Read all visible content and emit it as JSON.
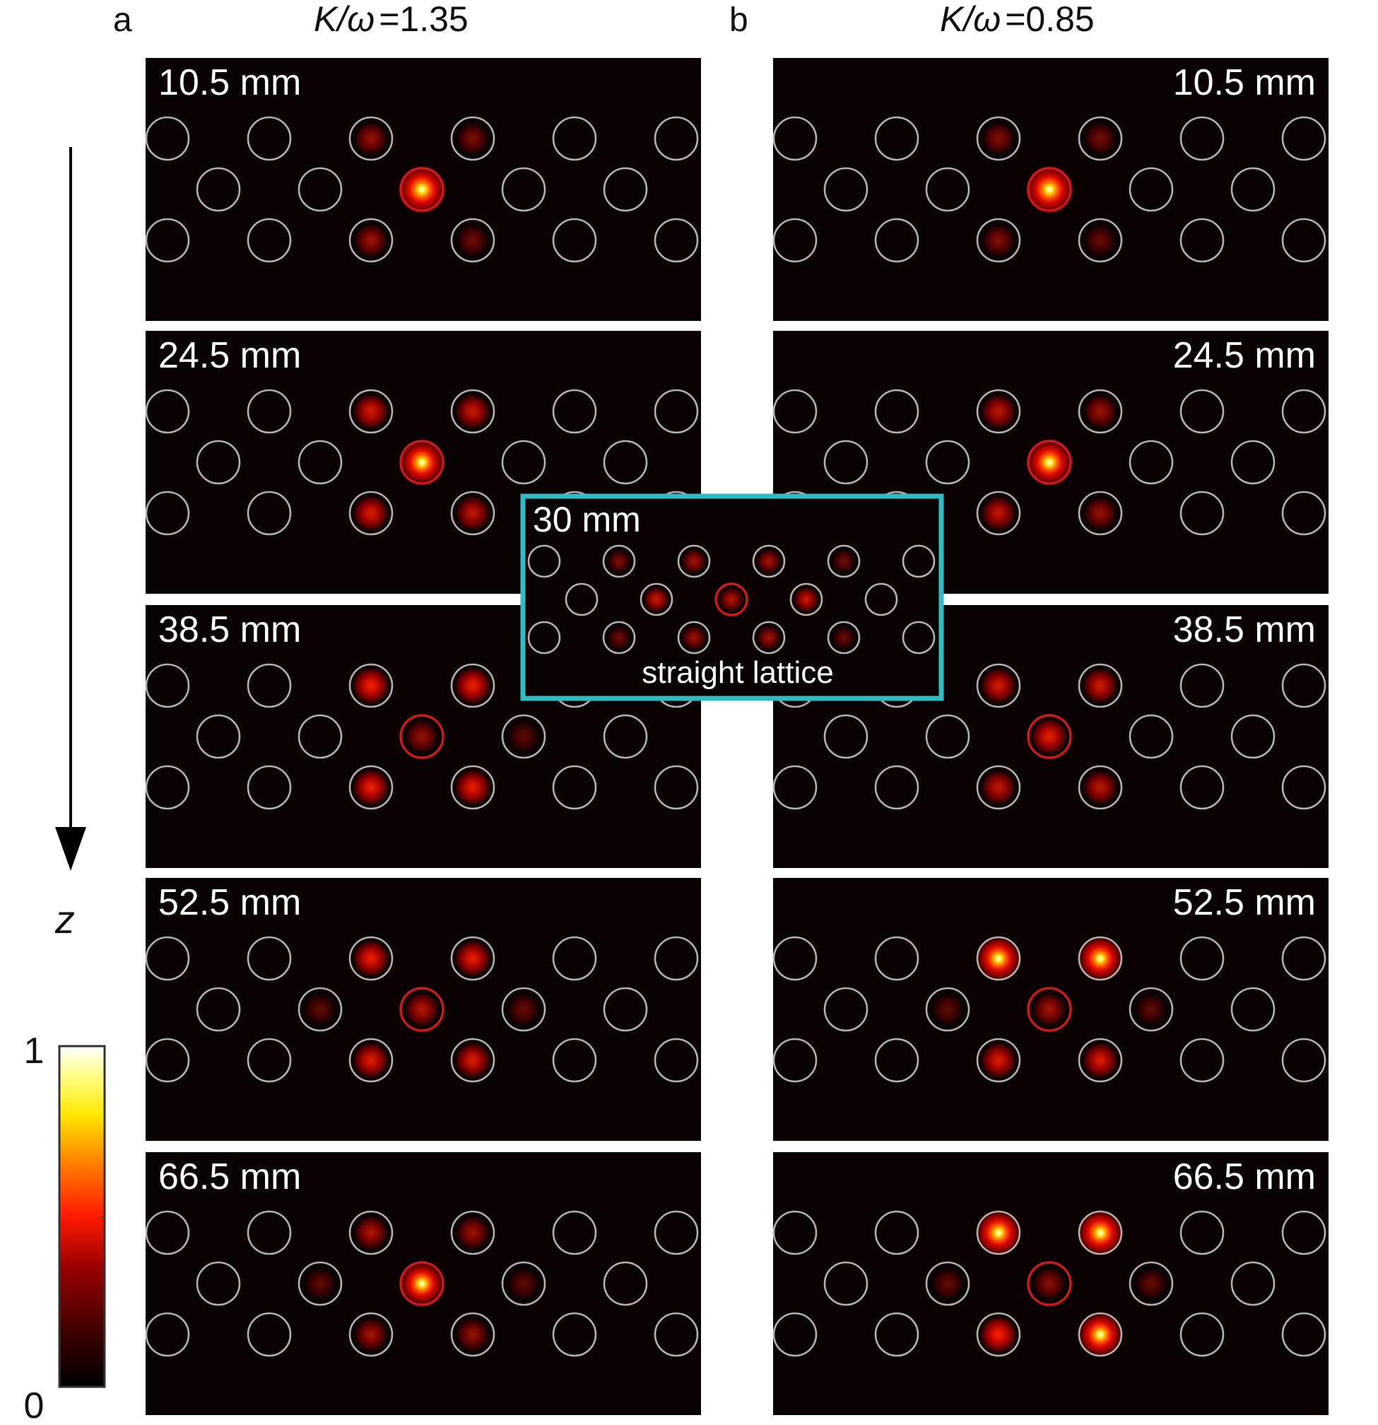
{
  "panels": [
    {
      "letter": "a",
      "ratio_value": "1.35",
      "frames": [
        {
          "z": "10.5 mm",
          "center": 1.0,
          "top": [
            0,
            0,
            0.22,
            0.14,
            0,
            0
          ],
          "mid": [
            0,
            0,
            0,
            0,
            0
          ],
          "bot": [
            0,
            0,
            0.24,
            0.1,
            0,
            0
          ]
        },
        {
          "z": "24.5 mm",
          "center": 0.68,
          "top": [
            0,
            0,
            0.42,
            0.38,
            0,
            0
          ],
          "mid": [
            0,
            0,
            0,
            0,
            0
          ],
          "bot": [
            0,
            0,
            0.44,
            0.36,
            0,
            0
          ]
        },
        {
          "z": "38.5 mm",
          "center": 0.22,
          "top": [
            0,
            0,
            0.52,
            0.5,
            0,
            0
          ],
          "mid": [
            0,
            0,
            0,
            0.05,
            0
          ],
          "bot": [
            0,
            0,
            0.5,
            0.48,
            0,
            0
          ]
        },
        {
          "z": "52.5 mm",
          "center": 0.32,
          "top": [
            0,
            0,
            0.5,
            0.48,
            0,
            0
          ],
          "mid": [
            0,
            0.06,
            0,
            0.08,
            0
          ],
          "bot": [
            0,
            0,
            0.46,
            0.44,
            0,
            0
          ]
        },
        {
          "z": "66.5 mm",
          "center": 0.58,
          "top": [
            0,
            0,
            0.3,
            0.24,
            0,
            0
          ],
          "mid": [
            0,
            0.06,
            0,
            0.06,
            0
          ],
          "bot": [
            0,
            0,
            0.26,
            0.22,
            0,
            0
          ]
        }
      ]
    },
    {
      "letter": "b",
      "ratio_value": "0.85",
      "frames": [
        {
          "z": "10.5 mm",
          "center": 1.0,
          "top": [
            0,
            0,
            0.16,
            0.12,
            0,
            0
          ],
          "mid": [
            0,
            0,
            0,
            0,
            0
          ],
          "bot": [
            0,
            0,
            0.16,
            0.08,
            0,
            0
          ]
        },
        {
          "z": "24.5 mm",
          "center": 0.8,
          "top": [
            0,
            0,
            0.34,
            0.24,
            0,
            0
          ],
          "mid": [
            0,
            0,
            0,
            0,
            0
          ],
          "bot": [
            0,
            0,
            0.36,
            0.22,
            0,
            0
          ]
        },
        {
          "z": "38.5 mm",
          "center": 0.48,
          "top": [
            0,
            0,
            0.42,
            0.4,
            0,
            0
          ],
          "mid": [
            0,
            0,
            0,
            0,
            0
          ],
          "bot": [
            0,
            0,
            0.36,
            0.34,
            0,
            0
          ]
        },
        {
          "z": "52.5 mm",
          "center": 0.26,
          "top": [
            0,
            0,
            0.6,
            0.58,
            0,
            0
          ],
          "mid": [
            0,
            0.05,
            0,
            0.05,
            0
          ],
          "bot": [
            0,
            0,
            0.44,
            0.44,
            0,
            0
          ]
        },
        {
          "z": "66.5 mm",
          "center": 0.18,
          "top": [
            0,
            0,
            0.7,
            0.72,
            0,
            0
          ],
          "mid": [
            0,
            0.07,
            0,
            0.07,
            0
          ],
          "bot": [
            0,
            0,
            0.54,
            0.62,
            0,
            0
          ]
        }
      ]
    }
  ],
  "ratio_label": "K/ω",
  "inset": {
    "z": "30 mm",
    "caption": "straight lattice",
    "border_color": "#2bbfc4",
    "center": 0.3,
    "top": [
      0,
      0.14,
      0.26,
      0.26,
      0.1,
      0
    ],
    "mid": [
      0,
      0.38,
      0.38,
      0
    ],
    "bot": [
      0,
      0.1,
      0.24,
      0.24,
      0.08,
      0
    ]
  },
  "axis": {
    "label": "z"
  },
  "colorbar": {
    "max_label": "1",
    "min_label": "0"
  },
  "colors": {
    "frame_bg": "#0a0202",
    "ring": "#b4b0ae",
    "center_ring": "#d01a1a"
  }
}
